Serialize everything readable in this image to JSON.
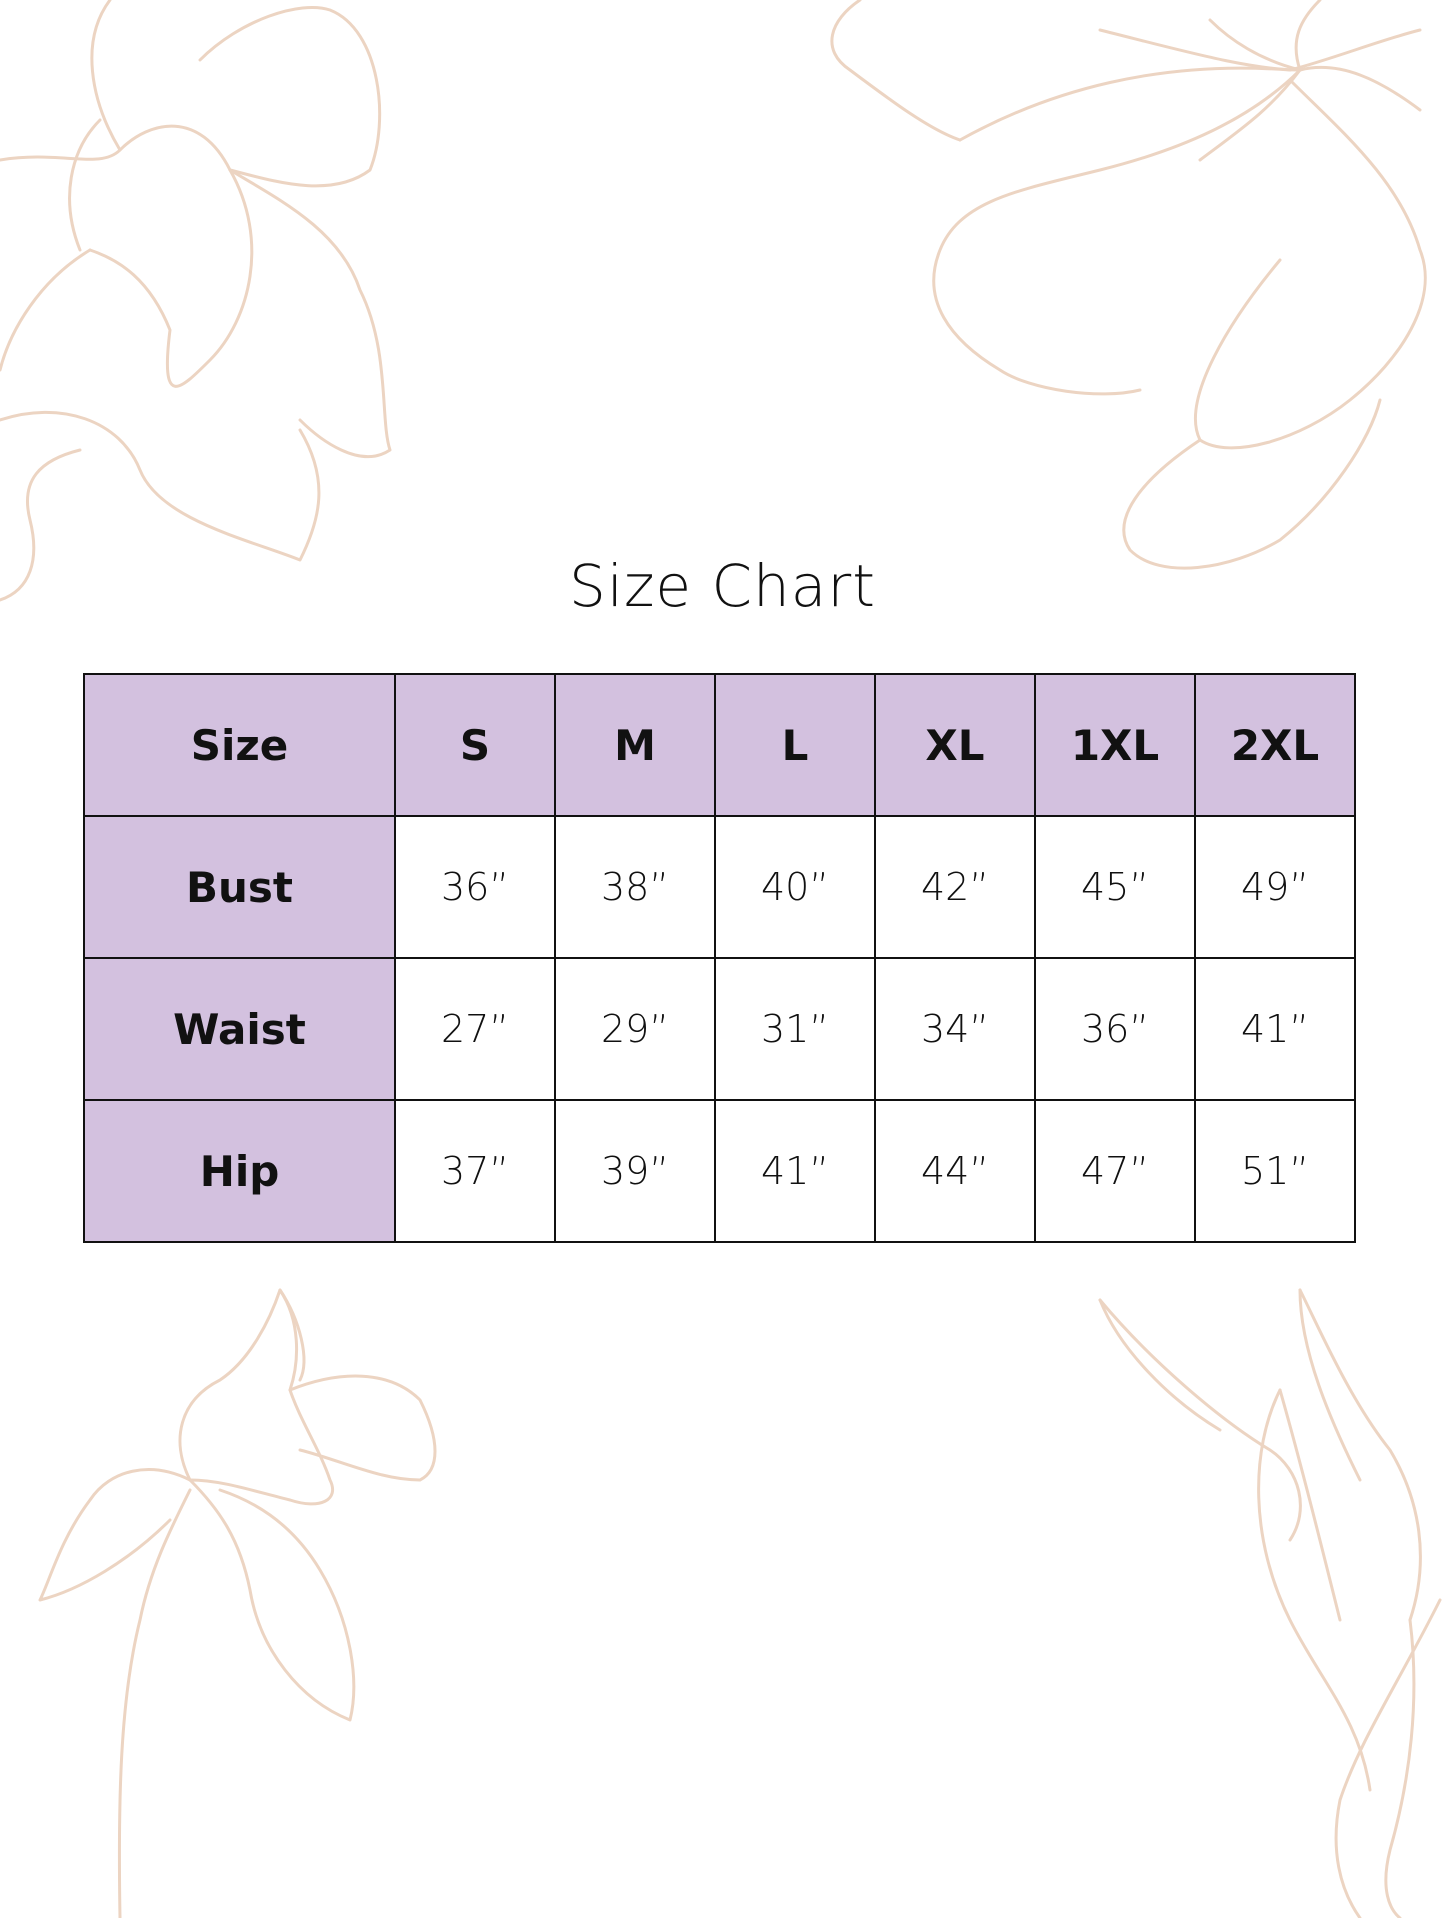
{
  "title": "Size Chart",
  "colors": {
    "header_bg": "#d3c1df",
    "border": "#111111",
    "floral_line": "#ecd4c2"
  },
  "decoration": "floral-line-art",
  "table": {
    "header": [
      "Size",
      "S",
      "M",
      "L",
      "XL",
      "1XL",
      "2XL"
    ],
    "rows": [
      {
        "label": "Bust",
        "values": [
          "36”",
          "38”",
          "40”",
          "42”",
          "45”",
          "49”"
        ]
      },
      {
        "label": "Waist",
        "values": [
          "27”",
          "29”",
          "31”",
          "34”",
          "36”",
          "41”"
        ]
      },
      {
        "label": "Hip",
        "values": [
          "37”",
          "39”",
          "41”",
          "44”",
          "47”",
          "51”"
        ]
      }
    ]
  }
}
